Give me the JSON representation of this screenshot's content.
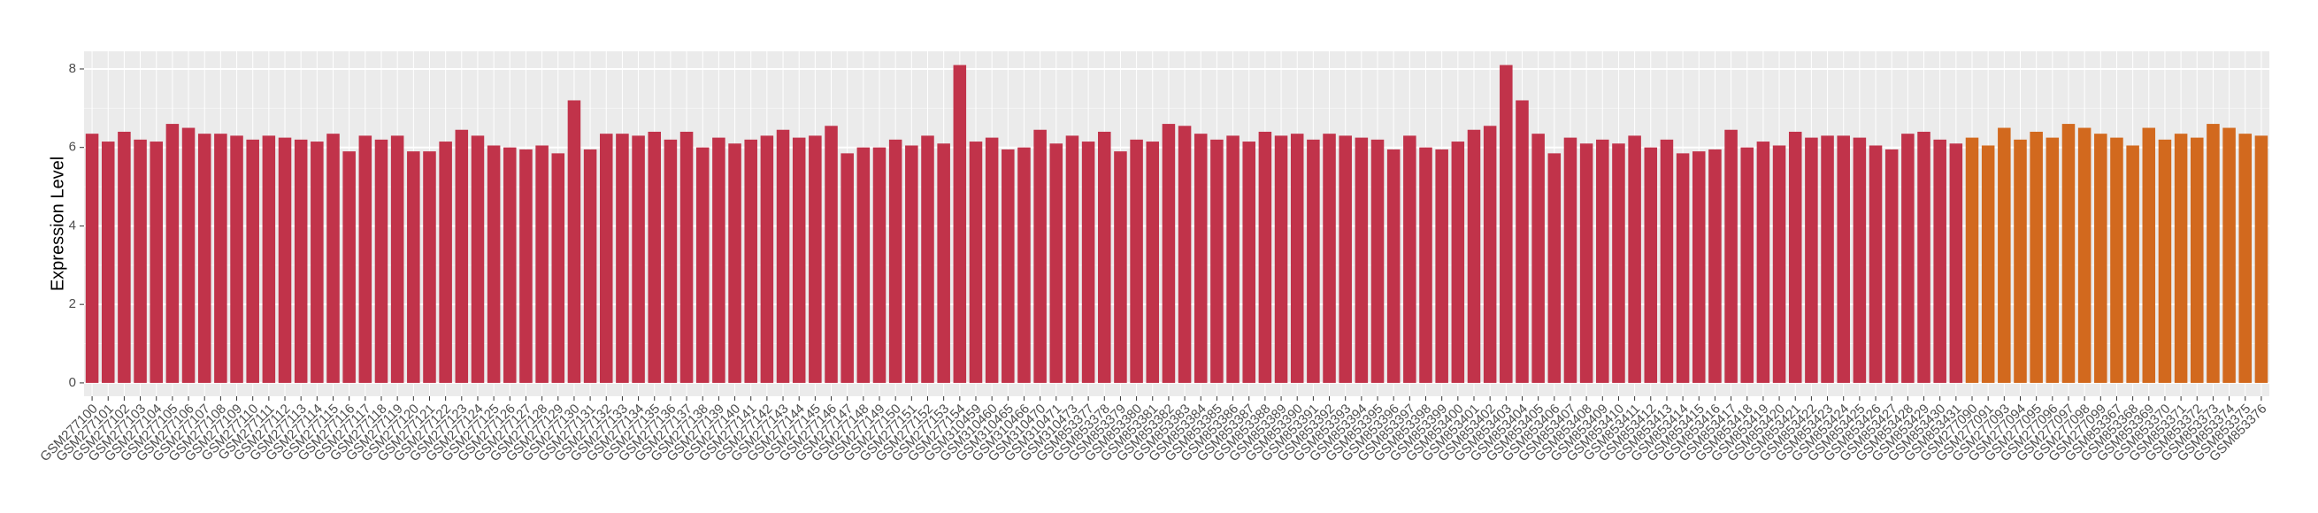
{
  "chart_data": {
    "type": "bar",
    "y_label": "Expression Level",
    "ylim": [
      -0.34,
      8.45
    ],
    "yticks": [
      0,
      2,
      4,
      6,
      8
    ],
    "grid": true,
    "series": [
      {
        "color": "#c1334a",
        "categories": [
          "GSM277100",
          "GSM277101",
          "GSM277102",
          "GSM277103",
          "GSM277104",
          "GSM277105",
          "GSM277106",
          "GSM277107",
          "GSM277108",
          "GSM277109",
          "GSM277110",
          "GSM277111",
          "GSM277112",
          "GSM277113",
          "GSM277114",
          "GSM277115",
          "GSM277116",
          "GSM277117",
          "GSM277118",
          "GSM277119",
          "GSM277120",
          "GSM277121",
          "GSM277122",
          "GSM277123",
          "GSM277124",
          "GSM277125",
          "GSM277126",
          "GSM277127",
          "GSM277128",
          "GSM277129",
          "GSM277130",
          "GSM277131",
          "GSM277132",
          "GSM277133",
          "GSM277134",
          "GSM277135",
          "GSM277136",
          "GSM277137",
          "GSM277138",
          "GSM277139",
          "GSM277140",
          "GSM277141",
          "GSM277142",
          "GSM277143",
          "GSM277144",
          "GSM277145",
          "GSM277146",
          "GSM277147",
          "GSM277148",
          "GSM277149",
          "GSM277150",
          "GSM277151",
          "GSM277152",
          "GSM277153",
          "GSM277154",
          "GSM310459",
          "GSM310460",
          "GSM310465",
          "GSM310466",
          "GSM310470",
          "GSM310471",
          "GSM310473",
          "GSM853377",
          "GSM853378",
          "GSM853379",
          "GSM853380",
          "GSM853381",
          "GSM853382",
          "GSM853383",
          "GSM853384",
          "GSM853385",
          "GSM853386",
          "GSM853387",
          "GSM853388",
          "GSM853389",
          "GSM853390",
          "GSM853391",
          "GSM853392",
          "GSM853393",
          "GSM853394",
          "GSM853395",
          "GSM853396",
          "GSM853397",
          "GSM853398",
          "GSM853399",
          "GSM853400",
          "GSM853401",
          "GSM853402",
          "GSM853403",
          "GSM853404",
          "GSM853405",
          "GSM853406",
          "GSM853407",
          "GSM853408",
          "GSM853409",
          "GSM853410",
          "GSM853411",
          "GSM853412",
          "GSM853413",
          "GSM853414",
          "GSM853415",
          "GSM853416",
          "GSM853417",
          "GSM853418",
          "GSM853419",
          "GSM853420",
          "GSM853421",
          "GSM853422",
          "GSM853423",
          "GSM853424",
          "GSM853425",
          "GSM853426",
          "GSM853427",
          "GSM853428",
          "GSM853429",
          "GSM853430",
          "GSM853431"
        ],
        "values": [
          6.35,
          6.15,
          6.4,
          6.2,
          6.15,
          6.6,
          6.5,
          6.35,
          6.35,
          6.3,
          6.2,
          6.3,
          6.25,
          6.2,
          6.15,
          6.35,
          5.9,
          6.3,
          6.2,
          6.3,
          5.9,
          5.9,
          6.15,
          6.45,
          6.3,
          6.05,
          6.0,
          5.95,
          6.05,
          5.85,
          7.2,
          5.95,
          6.35,
          6.35,
          6.3,
          6.4,
          6.2,
          6.4,
          6.0,
          6.25,
          6.1,
          6.2,
          6.3,
          6.45,
          6.25,
          6.3,
          6.55,
          5.85,
          6.0,
          6.0,
          6.2,
          6.05,
          6.3,
          6.1,
          8.1,
          6.15,
          6.25,
          5.95,
          6.0,
          6.45,
          6.1,
          6.3,
          6.15,
          6.4,
          5.9,
          6.2,
          6.15,
          6.6,
          6.55,
          6.35,
          6.2,
          6.3,
          6.15,
          6.4,
          6.3,
          6.35,
          6.2,
          6.35,
          6.3,
          6.25,
          6.2,
          5.95,
          6.3,
          6.0,
          5.95,
          6.15,
          6.45,
          6.55,
          8.1,
          7.2,
          6.35,
          5.85,
          6.25,
          6.1,
          6.2,
          6.1,
          6.3,
          6.0,
          6.2,
          5.85,
          5.9,
          5.95,
          6.45,
          6.0,
          6.15,
          6.05,
          6.4,
          6.25,
          6.3,
          6.3,
          6.25,
          6.05,
          5.95,
          6.35,
          6.4,
          6.2,
          6.1
        ]
      },
      {
        "color": "#d2691e",
        "categories": [
          "GSM277090",
          "GSM277091",
          "GSM277093",
          "GSM277094",
          "GSM277095",
          "GSM277096",
          "GSM277097",
          "GSM277098",
          "GSM277099",
          "GSM853367",
          "GSM853368",
          "GSM853369",
          "GSM853370",
          "GSM853371",
          "GSM853372",
          "GSM853373",
          "GSM853374",
          "GSM853375",
          "GSM853376"
        ],
        "values": [
          6.25,
          6.05,
          6.5,
          6.2,
          6.4,
          6.25,
          6.6,
          6.5,
          6.35,
          6.25,
          6.05,
          6.5,
          6.2,
          6.35,
          6.25,
          6.6,
          6.5,
          6.35,
          6.3
        ]
      }
    ]
  }
}
